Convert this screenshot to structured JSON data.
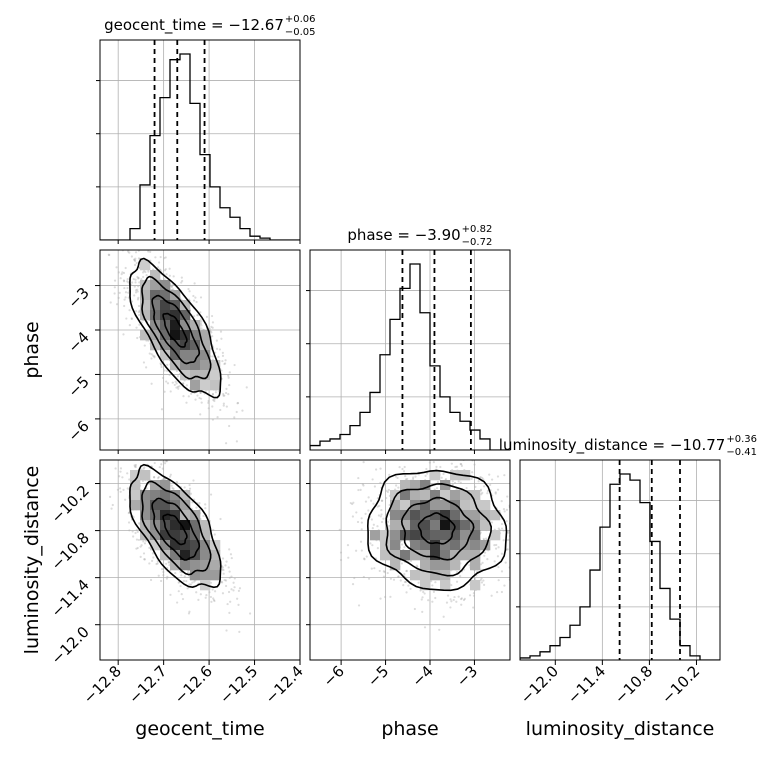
{
  "chart_data": {
    "type": "corner",
    "parameters": [
      "geocent_time",
      "phase",
      "luminosity_distance"
    ],
    "titles": [
      {
        "name": "geocent_time",
        "median": "−12.67",
        "plus": "+0.06",
        "minus": "−0.05"
      },
      {
        "name": "phase",
        "median": "−3.90",
        "plus": "+0.82",
        "minus": "−0.72"
      },
      {
        "name": "luminosity_distance",
        "median": "−10.77",
        "plus": "+0.36",
        "minus": "−0.41"
      }
    ],
    "axes": {
      "geocent_time": {
        "range": [
          -12.84,
          -12.4
        ],
        "ticks": [
          -12.8,
          -12.7,
          -12.6,
          -12.5,
          -12.4
        ],
        "tick_labels": [
          "−12.8",
          "−12.7",
          "−12.6",
          "−12.5",
          "−12.4"
        ]
      },
      "phase": {
        "range": [
          -6.7,
          -2.2
        ],
        "ticks": [
          -6,
          -5,
          -4,
          -3
        ],
        "tick_labels": [
          "−6",
          "−5",
          "−4",
          "−3"
        ]
      },
      "luminosity_distance": {
        "range": [
          -12.45,
          -9.9
        ],
        "ticks": [
          -12.0,
          -11.4,
          -10.8,
          -10.2
        ],
        "tick_labels": [
          "−12.0",
          "−11.4",
          "−10.8",
          "−10.2"
        ]
      }
    },
    "quantiles": {
      "geocent_time": [
        -12.72,
        -12.67,
        -12.61
      ],
      "phase": [
        -4.62,
        -3.9,
        -3.08
      ],
      "luminosity_distance": [
        -11.18,
        -10.77,
        -10.41
      ]
    },
    "histograms": {
      "geocent_time": {
        "edges_range": [
          -12.84,
          -12.4
        ],
        "bins": 20,
        "counts": [
          0,
          0,
          0,
          6,
          29,
          55,
          75,
          95,
          98,
          72,
          45,
          28,
          17,
          12,
          6,
          2,
          1,
          0,
          0,
          0
        ]
      },
      "phase": {
        "edges_range": [
          -6.7,
          -2.2
        ],
        "bins": 20,
        "counts": [
          2,
          4,
          5,
          7,
          11,
          17,
          26,
          43,
          59,
          73,
          84,
          62,
          38,
          24,
          17,
          13,
          9,
          5,
          0,
          0
        ]
      },
      "luminosity_distance": {
        "edges_range": [
          -12.45,
          -9.9
        ],
        "bins": 20,
        "counts": [
          1,
          2,
          4,
          7,
          11,
          17,
          26,
          44,
          65,
          86,
          91,
          88,
          77,
          58,
          35,
          20,
          7,
          2,
          0,
          0
        ]
      }
    },
    "grid": true,
    "show_titles": true
  }
}
